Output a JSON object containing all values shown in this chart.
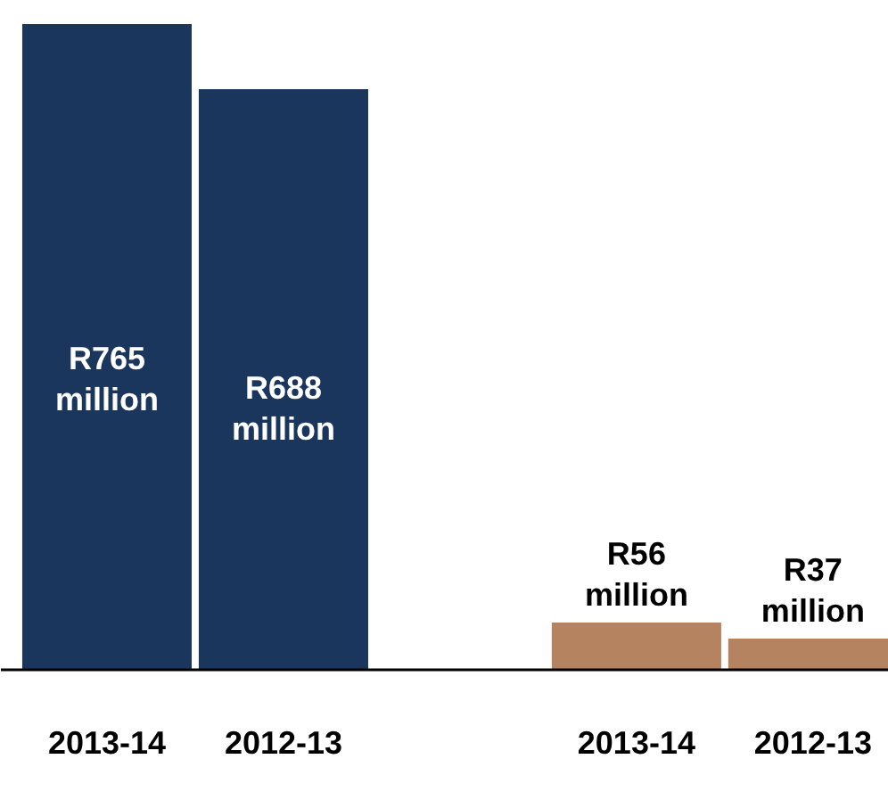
{
  "chart_data": {
    "type": "bar",
    "categories": [
      "2013-14",
      "2012-13",
      null,
      "2013-14",
      "2012-13"
    ],
    "values": [
      765,
      688,
      null,
      56,
      37
    ],
    "colors": [
      "#1b365d",
      "#1b365d",
      null,
      "#b5835f",
      "#b5835f"
    ],
    "value_labels": [
      "R765\nmillion",
      "R688\nmillion",
      null,
      "R56\nmillion",
      "R37\nmillion"
    ]
  }
}
